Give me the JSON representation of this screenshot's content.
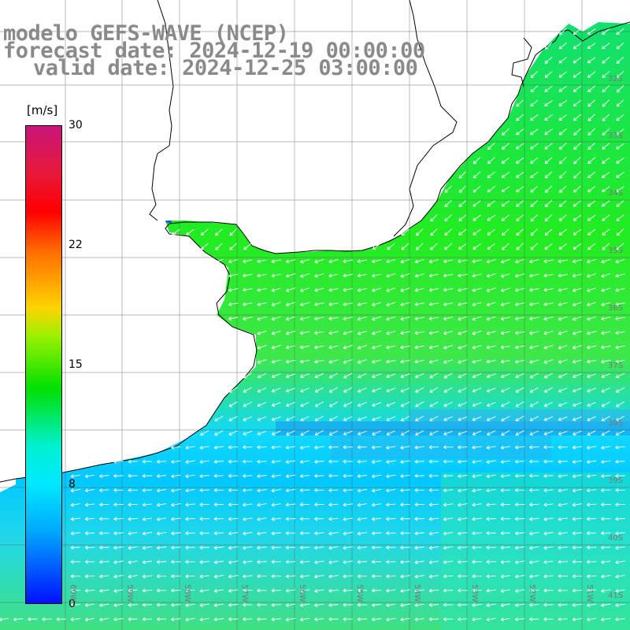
{
  "title": {
    "model": "modelo GEFS-WAVE (NCEP)",
    "forecast": "forecast date: 2024-12-19 00:00:00",
    "valid": "valid date: 2024-12-25 03:00:00"
  },
  "colorbar": {
    "unit": "[m/s]",
    "ticks": [
      "30",
      "22",
      "15",
      "8",
      "0"
    ]
  },
  "lat_labels": [
    "32S",
    "33S",
    "34S",
    "35S",
    "36S",
    "37S",
    "38S",
    "39S",
    "40S",
    "41S"
  ],
  "lon_labels": [
    "60W",
    "59W",
    "58W",
    "57W",
    "56W",
    "55W",
    "54W",
    "53W",
    "52W",
    "51W"
  ],
  "colors": {
    "ocean_green": "#2ee82e",
    "ocean_cyan": "#00e6ff",
    "ocean_blue": "#0090ff",
    "land": "#ffffff",
    "coast": "#000000",
    "grid": "#555555"
  }
}
